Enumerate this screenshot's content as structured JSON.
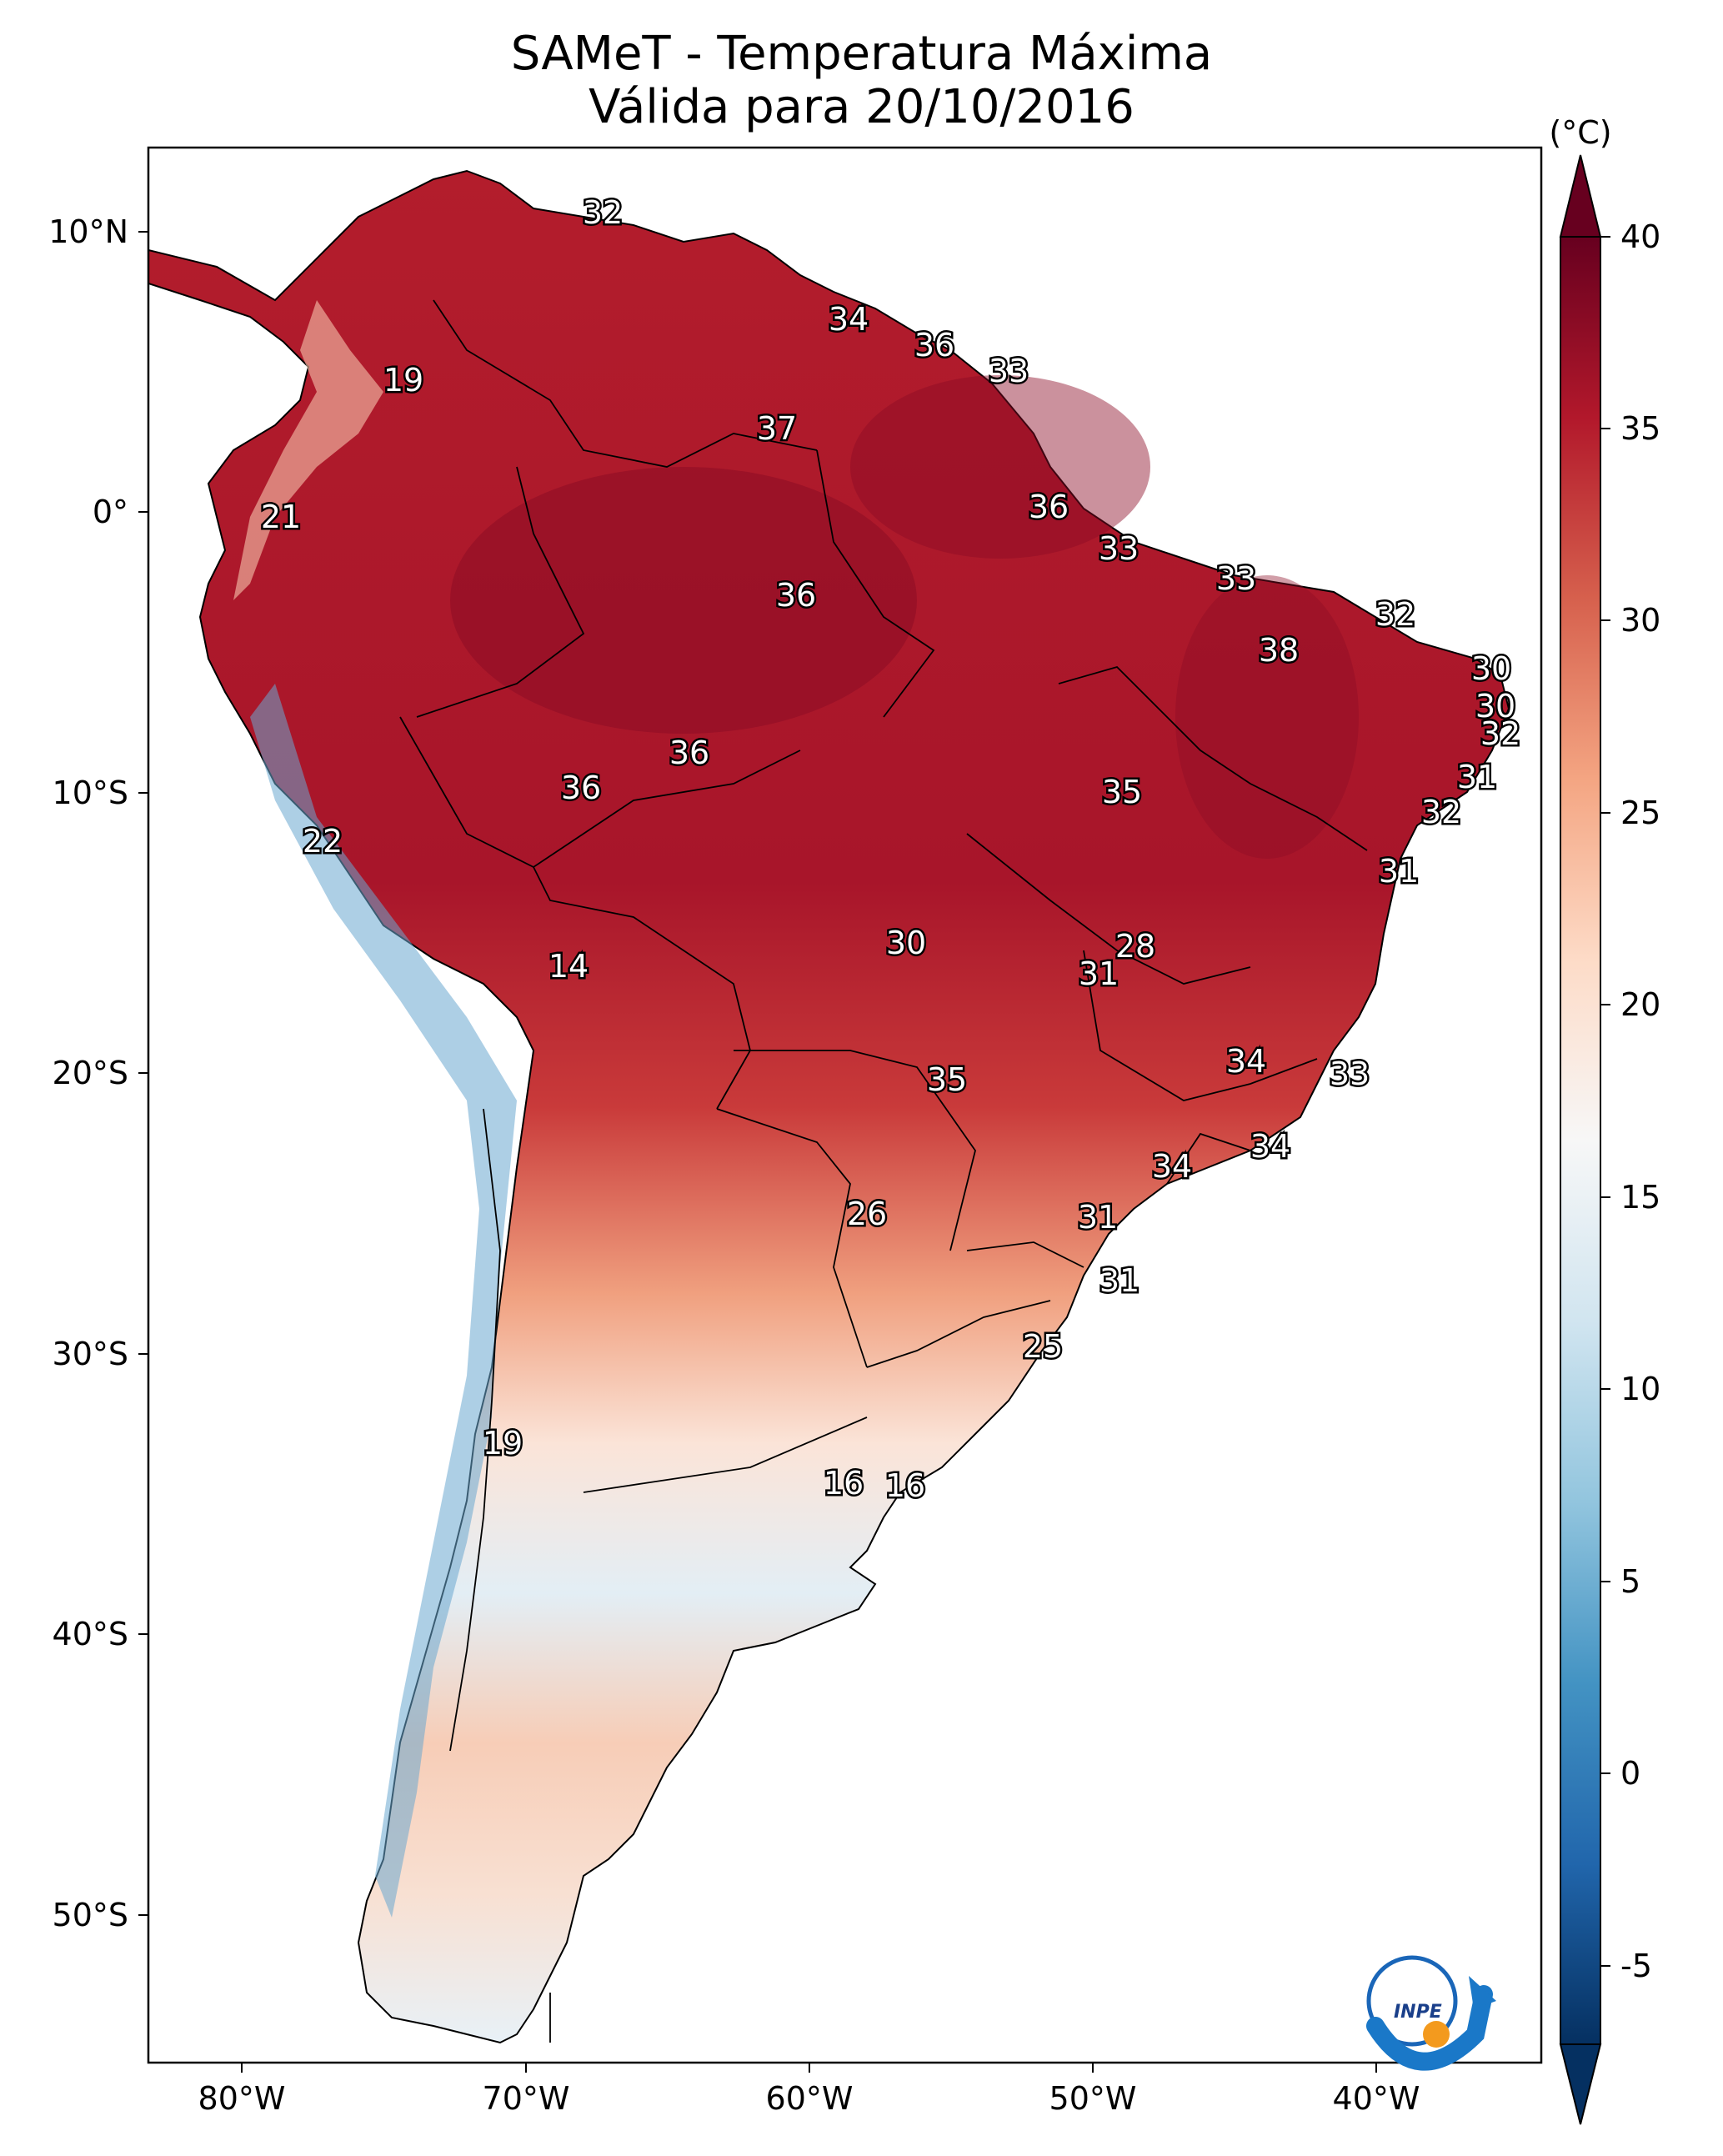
{
  "title": {
    "line1": "SAMeT - Temperatura Máxima",
    "line2": "Válida para 20/10/2016"
  },
  "axes": {
    "lon_ticks": [
      "80°W",
      "70°W",
      "60°W",
      "50°W",
      "40°W"
    ],
    "lat_ticks": [
      "10°N",
      "0°",
      "10°S",
      "20°S",
      "30°S",
      "40°S",
      "50°S"
    ]
  },
  "colorbar": {
    "unit_label": "(°C)",
    "ticks": [
      "40",
      "35",
      "30",
      "25",
      "20",
      "15",
      "10",
      "5",
      "0",
      "-5"
    ],
    "colors": [
      "#67001f",
      "#b2182b",
      "#d6604d",
      "#f4a582",
      "#fddbc7",
      "#f7f7f7",
      "#d1e5f0",
      "#92c5de",
      "#4393c3",
      "#2166ac",
      "#053061"
    ]
  },
  "logo": {
    "text": "INPE"
  },
  "map_values": [
    {
      "v": "32"
    },
    {
      "v": "34"
    },
    {
      "v": "36"
    },
    {
      "v": "33"
    },
    {
      "v": "19"
    },
    {
      "v": "37"
    },
    {
      "v": "36"
    },
    {
      "v": "21"
    },
    {
      "v": "33"
    },
    {
      "v": "36"
    },
    {
      "v": "33"
    },
    {
      "v": "32"
    },
    {
      "v": "38"
    },
    {
      "v": "30"
    },
    {
      "v": "30"
    },
    {
      "v": "32"
    },
    {
      "v": "36"
    },
    {
      "v": "31"
    },
    {
      "v": "36"
    },
    {
      "v": "35"
    },
    {
      "v": "32"
    },
    {
      "v": "22"
    },
    {
      "v": "31"
    },
    {
      "v": "30"
    },
    {
      "v": "28"
    },
    {
      "v": "31"
    },
    {
      "v": "14"
    },
    {
      "v": "34"
    },
    {
      "v": "35"
    },
    {
      "v": "33"
    },
    {
      "v": "34"
    },
    {
      "v": "34"
    },
    {
      "v": "26"
    },
    {
      "v": "31"
    },
    {
      "v": "31"
    },
    {
      "v": "25"
    },
    {
      "v": "19"
    },
    {
      "v": "16"
    },
    {
      "v": "16"
    }
  ]
}
